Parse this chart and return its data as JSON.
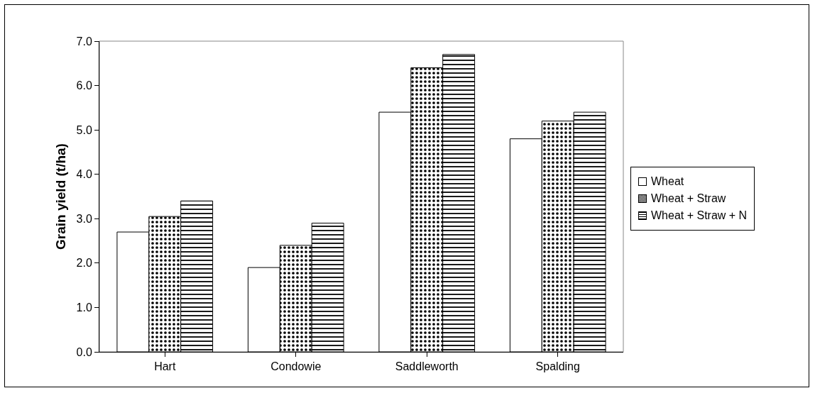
{
  "chart_data": {
    "type": "bar",
    "ylabel": "Grain yield (t/ha)",
    "categories": [
      "Hart",
      "Condowie",
      "Saddleworth",
      "Spalding"
    ],
    "series": [
      {
        "name": "Wheat",
        "color": "#ffffff",
        "values": [
          2.7,
          1.9,
          5.4,
          4.8
        ]
      },
      {
        "name": "Wheat + Straw",
        "color": "#000000",
        "values": [
          3.05,
          2.4,
          6.4,
          5.2
        ]
      },
      {
        "name": "Wheat + Straw + N",
        "color": "#000000",
        "values": [
          3.4,
          2.9,
          6.7,
          5.4
        ]
      }
    ],
    "ylim": [
      0,
      7
    ],
    "yticks": [
      {
        "value": 0,
        "label": "0.0"
      },
      {
        "value": 1,
        "label": "1.0"
      },
      {
        "value": 2,
        "label": "2.0"
      },
      {
        "value": 3,
        "label": "3.0"
      },
      {
        "value": 4,
        "label": "4.0"
      },
      {
        "value": 5,
        "label": "5.0"
      },
      {
        "value": 6,
        "label": "6.0"
      },
      {
        "value": 7,
        "label": "7.0"
      }
    ],
    "grid": false,
    "legend": "right"
  }
}
